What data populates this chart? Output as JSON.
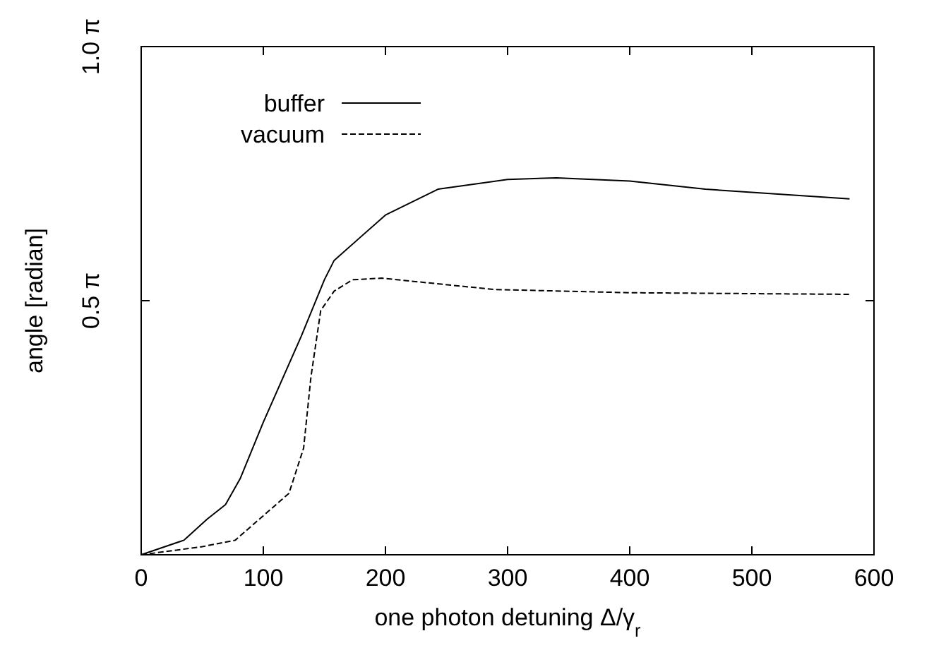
{
  "chart_data": {
    "type": "line",
    "xlabel": "one photon detuning Δ/γ$_{r}$",
    "ylabel": "angle [radian]",
    "xlim": [
      0,
      600
    ],
    "xticks": [
      0,
      100,
      200,
      300,
      400,
      500,
      600
    ],
    "ylim": [
      0,
      3.1416
    ],
    "yticks": [
      {
        "value": 0,
        "label": null
      },
      {
        "value": 1.5708,
        "label": "0.5 π"
      },
      {
        "value": 3.1416,
        "label": "1.0 π"
      }
    ],
    "legend": "top left",
    "grid": false,
    "series": [
      {
        "name": "buffer",
        "color": "#000000",
        "line_style": "solid",
        "x": [
          0,
          35,
          54,
          69,
          81,
          100,
          131,
          150,
          158,
          200,
          243,
          300,
          340,
          400,
          462,
          580
        ],
        "values": [
          0,
          0.09,
          0.22,
          0.31,
          0.47,
          0.82,
          1.35,
          1.7,
          1.82,
          2.1,
          2.26,
          2.32,
          2.33,
          2.31,
          2.26,
          2.2
        ]
      },
      {
        "name": "vacuum",
        "color": "#000000",
        "line_style": "dashed",
        "x": [
          0,
          50,
          77,
          121,
          133,
          139,
          147,
          158,
          173,
          197,
          289,
          400,
          580
        ],
        "values": [
          0,
          0.05,
          0.09,
          0.38,
          0.66,
          1.1,
          1.51,
          1.63,
          1.7,
          1.71,
          1.64,
          1.62,
          1.61
        ]
      }
    ]
  }
}
